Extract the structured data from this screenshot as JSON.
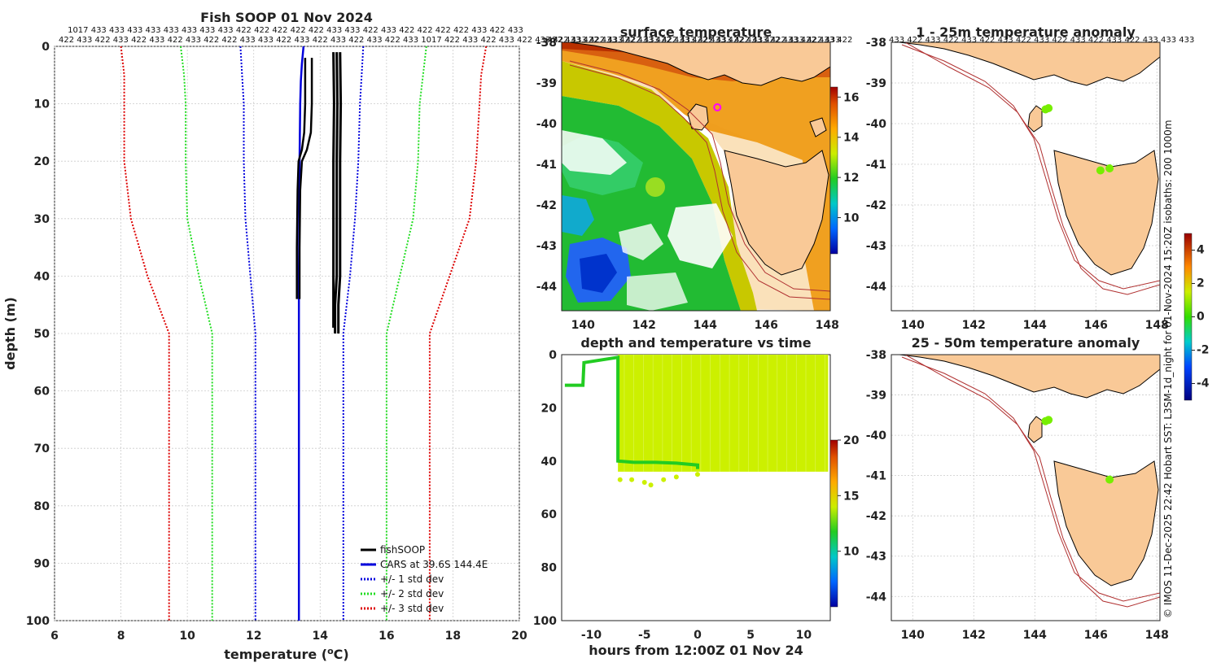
{
  "colors": {
    "fish": "#000000",
    "cars": "#0000dd",
    "sd1": "#0000dd",
    "sd2": "#22dd22",
    "sd3": "#dd0000",
    "land": "#f9c997",
    "coast": "#000000",
    "isobath": "#b03030",
    "grid": "#cccccc",
    "anomaly_dot": "#77ee00",
    "depth_fill": "#ccf000",
    "depth_track": "#22cc22",
    "marker": "#ff00ff"
  },
  "credit_text": "© IMOS 11-Dec-2025 22:42 Hobart SST: L3SM-1d_night for 01-Nov-2024 15:20Z isobaths: 200  1000m",
  "chart_data": [
    {
      "id": "profile",
      "type": "line",
      "title": "Fish SOOP 01 Nov 2024",
      "xlabel": "temperature (°C)",
      "xlabel_main": "temperature (",
      "xlabel_sup": "o",
      "xlabel_tail": "C)",
      "ylabel": "depth (m)",
      "xlim": [
        6,
        20
      ],
      "ylim": [
        0,
        100
      ],
      "y_reversed": true,
      "xticks": [
        6,
        8,
        10,
        12,
        14,
        16,
        18,
        20
      ],
      "yticks": [
        0,
        10,
        20,
        30,
        40,
        50,
        60,
        70,
        80,
        90,
        100
      ],
      "top_labels_row1": "1017 433 433 433 433 433 433 433 433 422 422 422 422 422 433 433 422 433 422 422 422 422 433 422 433",
      "top_labels_row2": "422 433 422 433 422 433 422 433 422 422 433 433 422 433 422 433 422 433 422 433 1017 422 433 422 433 422 433 422 433 422 433 422 433 422 433 422 433 422 433 422 433 422 433",
      "legend": [
        {
          "label": "fishSOOP",
          "style": "solid",
          "color_key": "fish"
        },
        {
          "label": "CARS at 39.6S 144.4E",
          "style": "solid",
          "color_key": "cars"
        },
        {
          "label": "+/- 1 std dev",
          "style": "dotted",
          "color_key": "sd1"
        },
        {
          "label": "+/- 2 std dev",
          "style": "dotted",
          "color_key": "sd2"
        },
        {
          "label": "+/- 3 std dev",
          "style": "dotted",
          "color_key": "sd3"
        }
      ],
      "series": [
        {
          "name": "CARS",
          "color_key": "cars",
          "style": "solid",
          "width": 2.5,
          "points": [
            [
              13.5,
              0
            ],
            [
              13.45,
              3
            ],
            [
              13.42,
              6
            ],
            [
              13.4,
              10
            ],
            [
              13.38,
              20
            ],
            [
              13.37,
              30
            ],
            [
              13.36,
              40
            ],
            [
              13.36,
              50
            ],
            [
              13.36,
              60
            ],
            [
              13.36,
              80
            ],
            [
              13.36,
              100
            ]
          ]
        },
        {
          "name": "+1 sd",
          "color_key": "sd1",
          "style": "dotted",
          "width": 2,
          "points": [
            [
              15.3,
              0
            ],
            [
              15.25,
              5
            ],
            [
              15.2,
              10
            ],
            [
              15.15,
              20
            ],
            [
              15.05,
              30
            ],
            [
              14.9,
              40
            ],
            [
              14.7,
              50
            ],
            [
              14.7,
              60
            ],
            [
              14.7,
              80
            ],
            [
              14.7,
              100
            ]
          ]
        },
        {
          "name": "-1 sd",
          "color_key": "sd1",
          "style": "dotted",
          "width": 2,
          "points": [
            [
              11.6,
              0
            ],
            [
              11.65,
              5
            ],
            [
              11.7,
              10
            ],
            [
              11.7,
              20
            ],
            [
              11.75,
              30
            ],
            [
              11.9,
              40
            ],
            [
              12.05,
              50
            ],
            [
              12.05,
              60
            ],
            [
              12.05,
              80
            ],
            [
              12.05,
              100
            ]
          ]
        },
        {
          "name": "+2 sd",
          "color_key": "sd2",
          "style": "dotted",
          "width": 2,
          "points": [
            [
              17.2,
              0
            ],
            [
              17.1,
              5
            ],
            [
              17.0,
              10
            ],
            [
              16.95,
              20
            ],
            [
              16.8,
              30
            ],
            [
              16.4,
              40
            ],
            [
              16.0,
              50
            ],
            [
              16.0,
              60
            ],
            [
              16.0,
              80
            ],
            [
              16.0,
              100
            ]
          ]
        },
        {
          "name": "-2 sd",
          "color_key": "sd2",
          "style": "dotted",
          "width": 2,
          "points": [
            [
              9.8,
              0
            ],
            [
              9.9,
              5
            ],
            [
              9.95,
              10
            ],
            [
              9.95,
              20
            ],
            [
              10.0,
              30
            ],
            [
              10.35,
              40
            ],
            [
              10.75,
              50
            ],
            [
              10.75,
              60
            ],
            [
              10.75,
              80
            ],
            [
              10.75,
              100
            ]
          ]
        },
        {
          "name": "+3 sd",
          "color_key": "sd3",
          "style": "dotted",
          "width": 2,
          "points": [
            [
              19.0,
              0
            ],
            [
              18.85,
              5
            ],
            [
              18.8,
              10
            ],
            [
              18.7,
              20
            ],
            [
              18.5,
              30
            ],
            [
              17.9,
              40
            ],
            [
              17.3,
              50
            ],
            [
              17.3,
              60
            ],
            [
              17.3,
              80
            ],
            [
              17.3,
              100
            ]
          ]
        },
        {
          "name": "-3 sd",
          "color_key": "sd3",
          "style": "dotted",
          "width": 2,
          "points": [
            [
              8.0,
              0
            ],
            [
              8.1,
              5
            ],
            [
              8.1,
              10
            ],
            [
              8.1,
              20
            ],
            [
              8.3,
              30
            ],
            [
              8.8,
              40
            ],
            [
              9.45,
              50
            ],
            [
              9.45,
              60
            ],
            [
              9.45,
              80
            ],
            [
              9.45,
              100
            ]
          ]
        },
        {
          "name": "fishSOOP A",
          "color_key": "fish",
          "style": "solid",
          "width": 2.5,
          "points": [
            [
              13.75,
              2
            ],
            [
              13.75,
              10
            ],
            [
              13.72,
              15
            ],
            [
              13.6,
              18
            ],
            [
              13.45,
              20
            ],
            [
              13.4,
              25
            ],
            [
              13.38,
              35
            ],
            [
              13.38,
              44
            ]
          ]
        },
        {
          "name": "fishSOOP B",
          "color_key": "fish",
          "style": "solid",
          "width": 2.5,
          "points": [
            [
              13.55,
              2
            ],
            [
              13.55,
              10
            ],
            [
              13.52,
              15
            ],
            [
              13.45,
              18
            ],
            [
              13.35,
              20
            ],
            [
              13.32,
              25
            ],
            [
              13.3,
              35
            ],
            [
              13.3,
              44
            ]
          ]
        },
        {
          "name": "fishSOOP C",
          "color_key": "fish",
          "style": "solid",
          "width": 3,
          "points": [
            [
              14.5,
              1
            ],
            [
              14.52,
              10
            ],
            [
              14.5,
              20
            ],
            [
              14.5,
              30
            ],
            [
              14.5,
              40
            ],
            [
              14.45,
              45
            ],
            [
              14.45,
              50
            ]
          ]
        },
        {
          "name": "fishSOOP D",
          "color_key": "fish",
          "style": "solid",
          "width": 3,
          "points": [
            [
              14.6,
              1
            ],
            [
              14.62,
              10
            ],
            [
              14.6,
              20
            ],
            [
              14.6,
              30
            ],
            [
              14.6,
              40
            ],
            [
              14.55,
              45
            ],
            [
              14.55,
              50
            ]
          ]
        },
        {
          "name": "fishSOOP E",
          "color_key": "fish",
          "style": "solid",
          "width": 3,
          "points": [
            [
              14.4,
              1
            ],
            [
              14.42,
              10
            ],
            [
              14.4,
              20
            ],
            [
              14.4,
              30
            ],
            [
              14.4,
              40
            ],
            [
              14.4,
              45
            ],
            [
              14.4,
              49
            ]
          ]
        }
      ]
    },
    {
      "id": "sst_map",
      "type": "heatmap",
      "title": "surface temperature",
      "xlim": [
        139.3,
        148.1
      ],
      "ylim": [
        -44.6,
        -38
      ],
      "xticks": [
        140,
        142,
        144,
        146,
        148
      ],
      "yticks": [
        -38,
        -39,
        -40,
        -41,
        -42,
        -43,
        -44
      ],
      "top_labels": "422 433 422 433 422 433 422 433 422 433 422 433 422 433 422 433 422",
      "colorbar": {
        "ticks": [
          10,
          12,
          14,
          16
        ],
        "range": [
          8.2,
          16.5
        ]
      },
      "marker": {
        "lon": 144.4,
        "lat": -39.6
      }
    },
    {
      "id": "depth_time",
      "type": "scatter",
      "title": "depth and temperature vs time",
      "xlabel": "hours from 12:00Z 01 Nov 24",
      "xlim": [
        -12.8,
        12.5
      ],
      "ylim": [
        0,
        100
      ],
      "y_reversed": true,
      "xticks": [
        -10,
        -5,
        0,
        5,
        10
      ],
      "yticks": [
        0,
        20,
        40,
        60,
        80,
        100
      ],
      "colorbar": {
        "ticks": [
          10,
          15,
          20
        ],
        "range": [
          5,
          20
        ]
      },
      "block": {
        "x0": -7.5,
        "x1": 12.3,
        "y0": 0,
        "y1": 44
      },
      "track_points": [
        [
          -12.5,
          11.5
        ],
        [
          -10.8,
          11.5
        ],
        [
          -10.7,
          3
        ],
        [
          -7.5,
          1
        ],
        [
          -7.5,
          40
        ],
        [
          -6,
          40.5
        ],
        [
          -4,
          40.5
        ],
        [
          -2,
          40.8
        ],
        [
          0,
          41.5
        ],
        [
          0,
          43
        ]
      ],
      "bottom_points": [
        [
          -7.3,
          47
        ],
        [
          -6.2,
          47
        ],
        [
          -5,
          48
        ],
        [
          -4.4,
          49
        ],
        [
          -3.2,
          47
        ],
        [
          -2,
          46
        ],
        [
          0,
          45
        ]
      ]
    },
    {
      "id": "anomaly_top",
      "type": "scatter",
      "title": "1 - 25m temperature anomaly",
      "xlim": [
        139.3,
        148.1
      ],
      "ylim": [
        -44.6,
        -38
      ],
      "xticks": [
        140,
        142,
        144,
        146,
        148
      ],
      "yticks": [
        -38,
        -39,
        -40,
        -41,
        -42,
        -43,
        -44
      ],
      "top_labels": "433 422 433 422 433 422 433 422 433 422 433 422 433 422 433 433 433",
      "points": [
        [
          144.35,
          -39.65
        ],
        [
          144.45,
          -39.62
        ],
        [
          146.15,
          -41.15
        ],
        [
          146.45,
          -41.1
        ]
      ],
      "colorbar": {
        "ticks": [
          4,
          2,
          0,
          -2,
          -4
        ],
        "range": [
          -5,
          5
        ]
      }
    },
    {
      "id": "anomaly_bottom",
      "type": "scatter",
      "title": "25 - 50m temperature anomaly",
      "xlim": [
        139.3,
        148.1
      ],
      "ylim": [
        -44.6,
        -38
      ],
      "xticks": [
        140,
        142,
        144,
        146,
        148
      ],
      "yticks": [
        -38,
        -39,
        -40,
        -41,
        -42,
        -43,
        -44
      ],
      "points": [
        [
          144.35,
          -39.65
        ],
        [
          144.45,
          -39.62
        ],
        [
          146.45,
          -41.1
        ]
      ]
    }
  ]
}
